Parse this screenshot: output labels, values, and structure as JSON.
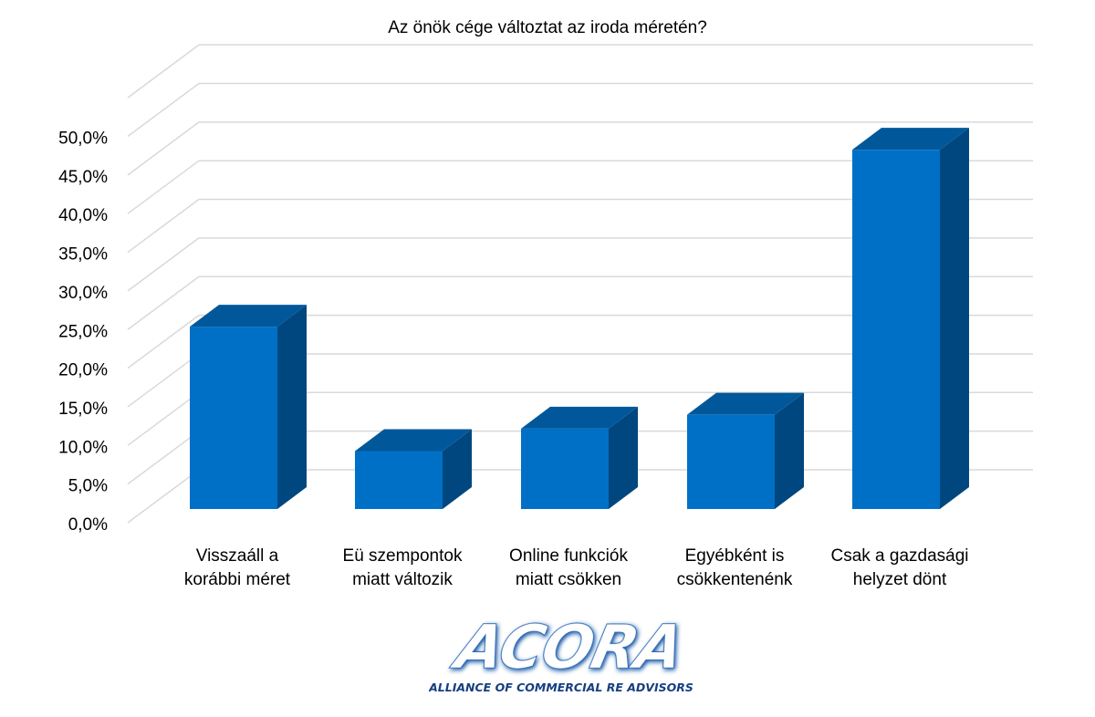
{
  "chart_data": {
    "type": "bar",
    "style": "3d-column",
    "title": "Az önök cége változtat az iroda méretén?",
    "categories": [
      [
        "Visszaáll a",
        "korábbi méret"
      ],
      [
        "Eü szempontok",
        "miatt változik"
      ],
      [
        "Online funkciók",
        "miatt csökken"
      ],
      [
        "Egyébként is",
        "csökkentenénk"
      ],
      [
        "Csak a gazdasági",
        "helyzet dönt"
      ]
    ],
    "values": [
      23.6,
      7.5,
      10.4,
      12.2,
      46.5
    ],
    "ylim": [
      0,
      50
    ],
    "yticks": [
      "0,0%",
      "5,0%",
      "10,0%",
      "15,0%",
      "20,0%",
      "25,0%",
      "30,0%",
      "35,0%",
      "40,0%",
      "45,0%",
      "50,0%"
    ],
    "grid": true,
    "legend": "none",
    "colors": {
      "front": "#0070C6",
      "top": "#00589A",
      "side": "#00477F",
      "grid": "#D9D9D9"
    }
  },
  "logo": {
    "name": "ACORA",
    "tagline": "ALLIANCE OF COMMERCIAL RE ADVISORS"
  }
}
